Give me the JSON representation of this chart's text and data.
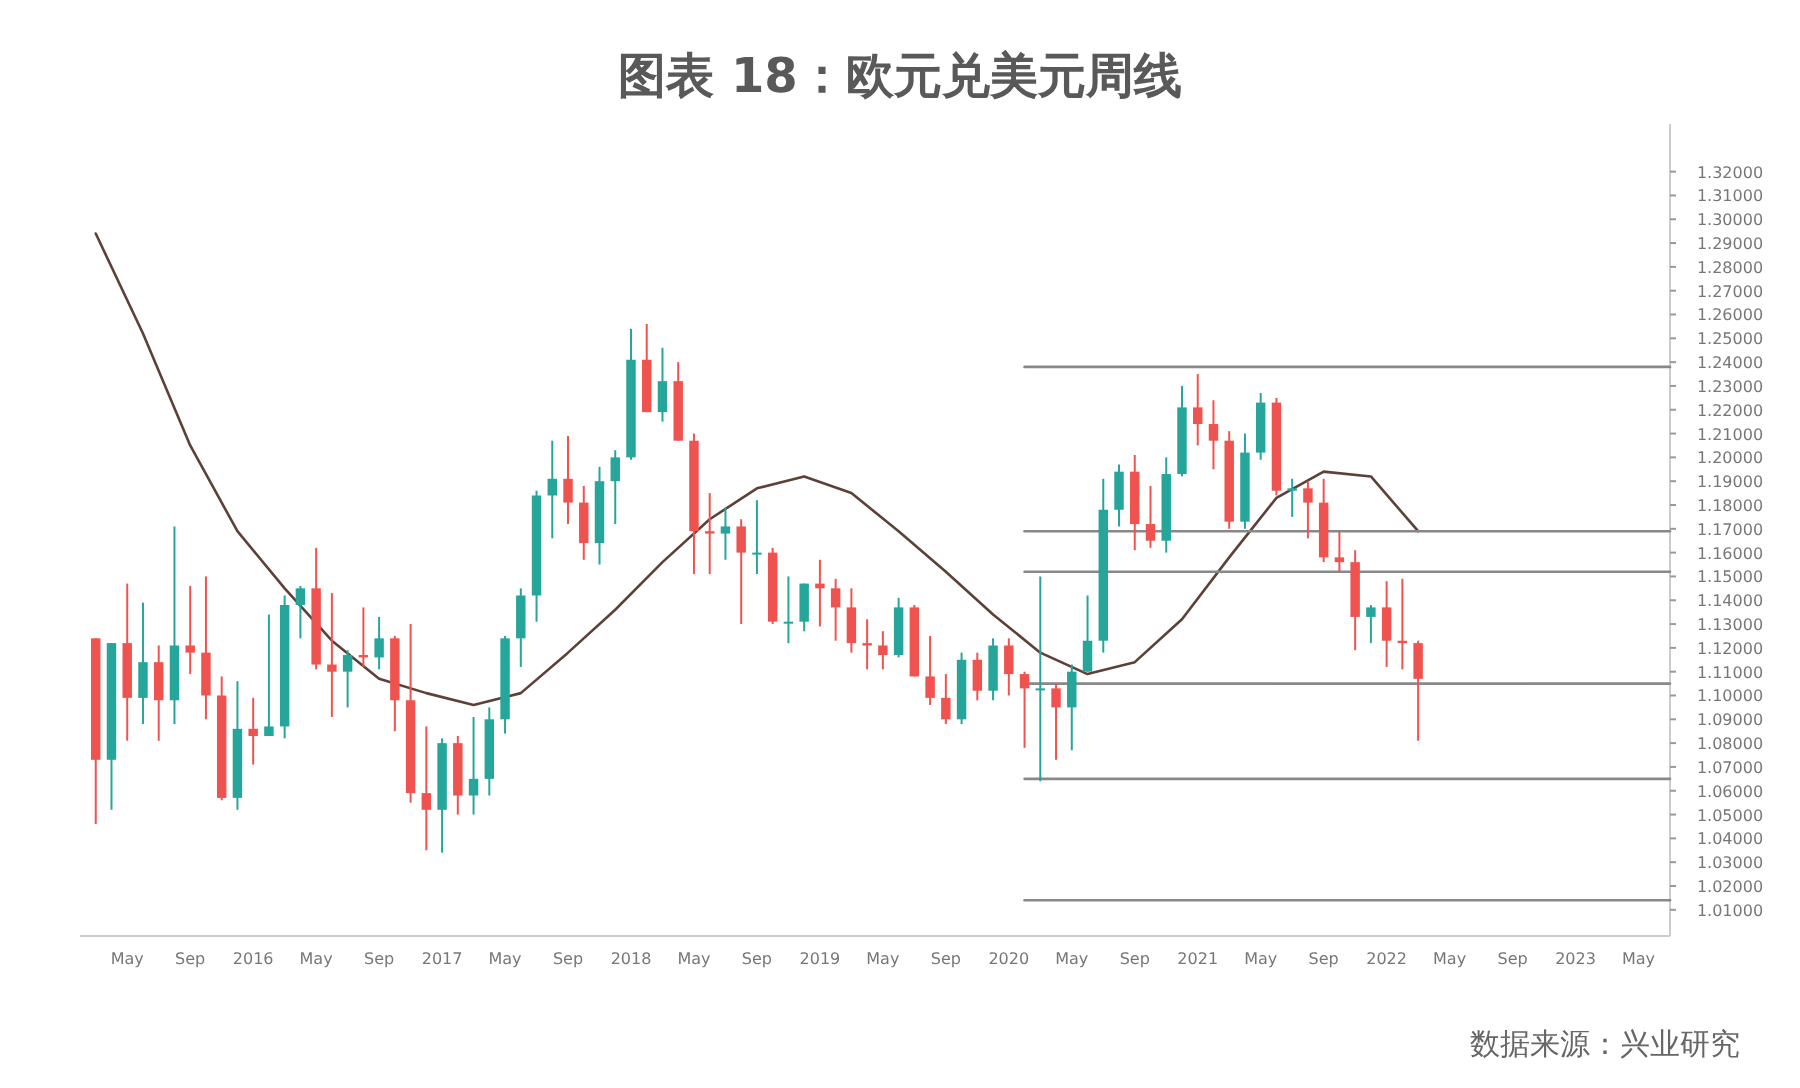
{
  "chart_data": {
    "type": "candlestick",
    "title": "图表 18：欧元兑美元周线",
    "annotations": [
      "数据来源：兴业研究"
    ],
    "xlim": [
      "2015-02",
      "2023-07"
    ],
    "ylim": [
      0.999,
      1.34
    ],
    "yticks": [
      {
        "value": 1.01,
        "label": "1.01000"
      },
      {
        "value": 1.02,
        "label": "1.02000"
      },
      {
        "value": 1.03,
        "label": "1.03000"
      },
      {
        "value": 1.04,
        "label": "1.04000"
      },
      {
        "value": 1.05,
        "label": "1.05000"
      },
      {
        "value": 1.06,
        "label": "1.06000"
      },
      {
        "value": 1.07,
        "label": "1.07000"
      },
      {
        "value": 1.08,
        "label": "1.08000"
      },
      {
        "value": 1.09,
        "label": "1.09000"
      },
      {
        "value": 1.1,
        "label": "1.10000"
      },
      {
        "value": 1.11,
        "label": "1.11000"
      },
      {
        "value": 1.12,
        "label": "1.12000"
      },
      {
        "value": 1.13,
        "label": "1.13000"
      },
      {
        "value": 1.14,
        "label": "1.14000"
      },
      {
        "value": 1.15,
        "label": "1.15000"
      },
      {
        "value": 1.16,
        "label": "1.16000"
      },
      {
        "value": 1.17,
        "label": "1.17000"
      },
      {
        "value": 1.18,
        "label": "1.18000"
      },
      {
        "value": 1.19,
        "label": "1.19000"
      },
      {
        "value": 1.2,
        "label": "1.20000"
      },
      {
        "value": 1.21,
        "label": "1.21000"
      },
      {
        "value": 1.22,
        "label": "1.22000"
      },
      {
        "value": 1.23,
        "label": "1.23000"
      },
      {
        "value": 1.24,
        "label": "1.24000"
      },
      {
        "value": 1.25,
        "label": "1.25000"
      },
      {
        "value": 1.26,
        "label": "1.26000"
      },
      {
        "value": 1.27,
        "label": "1.27000"
      },
      {
        "value": 1.28,
        "label": "1.28000"
      },
      {
        "value": 1.29,
        "label": "1.29000"
      },
      {
        "value": 1.3,
        "label": "1.30000"
      },
      {
        "value": 1.31,
        "label": "1.31000"
      },
      {
        "value": 1.32,
        "label": "1.32000"
      }
    ],
    "xticks": [
      {
        "value": "2015-05",
        "label": "May"
      },
      {
        "value": "2015-09",
        "label": "Sep"
      },
      {
        "value": "2016-01",
        "label": "2016"
      },
      {
        "value": "2016-05",
        "label": "May"
      },
      {
        "value": "2016-09",
        "label": "Sep"
      },
      {
        "value": "2017-01",
        "label": "2017"
      },
      {
        "value": "2017-05",
        "label": "May"
      },
      {
        "value": "2017-09",
        "label": "Sep"
      },
      {
        "value": "2018-01",
        "label": "2018"
      },
      {
        "value": "2018-05",
        "label": "May"
      },
      {
        "value": "2018-09",
        "label": "Sep"
      },
      {
        "value": "2019-01",
        "label": "2019"
      },
      {
        "value": "2019-05",
        "label": "May"
      },
      {
        "value": "2019-09",
        "label": "Sep"
      },
      {
        "value": "2020-01",
        "label": "2020"
      },
      {
        "value": "2020-05",
        "label": "May"
      },
      {
        "value": "2020-09",
        "label": "Sep"
      },
      {
        "value": "2021-01",
        "label": "2021"
      },
      {
        "value": "2021-05",
        "label": "May"
      },
      {
        "value": "2021-09",
        "label": "Sep"
      },
      {
        "value": "2022-01",
        "label": "2022"
      },
      {
        "value": "2022-05",
        "label": "May"
      },
      {
        "value": "2022-09",
        "label": "Sep"
      },
      {
        "value": "2023-01",
        "label": "2023"
      },
      {
        "value": "2023-05",
        "label": "May"
      }
    ],
    "x": [
      "2015-03",
      "2015-04",
      "2015-05",
      "2015-06",
      "2015-07",
      "2015-08",
      "2015-09",
      "2015-10",
      "2015-11",
      "2015-12",
      "2016-01",
      "2016-02",
      "2016-03",
      "2016-04",
      "2016-05",
      "2016-06",
      "2016-07",
      "2016-08",
      "2016-09",
      "2016-10",
      "2016-11",
      "2016-12",
      "2017-01",
      "2017-02",
      "2017-03",
      "2017-04",
      "2017-05",
      "2017-06",
      "2017-07",
      "2017-08",
      "2017-09",
      "2017-10",
      "2017-11",
      "2017-12",
      "2018-01",
      "2018-02",
      "2018-03",
      "2018-04",
      "2018-05",
      "2018-06",
      "2018-07",
      "2018-08",
      "2018-09",
      "2018-10",
      "2018-11",
      "2018-12",
      "2019-01",
      "2019-02",
      "2019-03",
      "2019-04",
      "2019-05",
      "2019-06",
      "2019-07",
      "2019-08",
      "2019-09",
      "2019-10",
      "2019-11",
      "2019-12",
      "2020-01",
      "2020-02",
      "2020-03",
      "2020-04",
      "2020-05",
      "2020-06",
      "2020-07",
      "2020-08",
      "2020-09",
      "2020-10",
      "2020-11",
      "2020-12",
      "2021-01",
      "2021-02",
      "2021-03",
      "2021-04",
      "2021-05",
      "2021-06",
      "2021-07",
      "2021-08",
      "2021-09",
      "2021-10",
      "2021-11",
      "2021-12",
      "2022-01",
      "2022-02",
      "2022-03"
    ],
    "ohlc": [
      [
        1.124,
        1.124,
        1.046,
        1.073
      ],
      [
        1.073,
        1.122,
        1.052,
        1.122
      ],
      [
        1.122,
        1.147,
        1.081,
        1.099
      ],
      [
        1.099,
        1.139,
        1.088,
        1.114
      ],
      [
        1.114,
        1.121,
        1.081,
        1.098
      ],
      [
        1.098,
        1.171,
        1.088,
        1.121
      ],
      [
        1.121,
        1.146,
        1.109,
        1.118
      ],
      [
        1.118,
        1.15,
        1.09,
        1.1
      ],
      [
        1.1,
        1.108,
        1.056,
        1.057
      ],
      [
        1.057,
        1.106,
        1.052,
        1.086
      ],
      [
        1.086,
        1.099,
        1.071,
        1.083
      ],
      [
        1.083,
        1.134,
        1.083,
        1.087
      ],
      [
        1.087,
        1.142,
        1.082,
        1.138
      ],
      [
        1.138,
        1.146,
        1.124,
        1.145
      ],
      [
        1.145,
        1.162,
        1.111,
        1.113
      ],
      [
        1.113,
        1.143,
        1.091,
        1.11
      ],
      [
        1.11,
        1.119,
        1.095,
        1.117
      ],
      [
        1.117,
        1.137,
        1.112,
        1.116
      ],
      [
        1.116,
        1.133,
        1.111,
        1.124
      ],
      [
        1.124,
        1.125,
        1.085,
        1.098
      ],
      [
        1.098,
        1.13,
        1.055,
        1.059
      ],
      [
        1.059,
        1.087,
        1.035,
        1.052
      ],
      [
        1.052,
        1.082,
        1.034,
        1.08
      ],
      [
        1.08,
        1.083,
        1.05,
        1.058
      ],
      [
        1.058,
        1.091,
        1.05,
        1.065
      ],
      [
        1.065,
        1.095,
        1.058,
        1.09
      ],
      [
        1.09,
        1.125,
        1.084,
        1.124
      ],
      [
        1.124,
        1.145,
        1.112,
        1.142
      ],
      [
        1.142,
        1.186,
        1.131,
        1.184
      ],
      [
        1.184,
        1.207,
        1.166,
        1.191
      ],
      [
        1.191,
        1.209,
        1.172,
        1.181
      ],
      [
        1.181,
        1.188,
        1.157,
        1.164
      ],
      [
        1.164,
        1.196,
        1.155,
        1.19
      ],
      [
        1.19,
        1.203,
        1.172,
        1.2
      ],
      [
        1.2,
        1.254,
        1.199,
        1.241
      ],
      [
        1.241,
        1.256,
        1.219,
        1.219
      ],
      [
        1.219,
        1.246,
        1.215,
        1.232
      ],
      [
        1.232,
        1.24,
        1.207,
        1.207
      ],
      [
        1.207,
        1.21,
        1.151,
        1.169
      ],
      [
        1.169,
        1.185,
        1.151,
        1.168
      ],
      [
        1.168,
        1.179,
        1.157,
        1.171
      ],
      [
        1.171,
        1.174,
        1.13,
        1.16
      ],
      [
        1.16,
        1.182,
        1.151,
        1.16
      ],
      [
        1.16,
        1.162,
        1.13,
        1.131
      ],
      [
        1.131,
        1.15,
        1.122,
        1.131
      ],
      [
        1.131,
        1.147,
        1.127,
        1.147
      ],
      [
        1.147,
        1.157,
        1.129,
        1.145
      ],
      [
        1.145,
        1.149,
        1.123,
        1.137
      ],
      [
        1.137,
        1.145,
        1.118,
        1.122
      ],
      [
        1.122,
        1.132,
        1.111,
        1.121
      ],
      [
        1.121,
        1.127,
        1.111,
        1.117
      ],
      [
        1.117,
        1.141,
        1.116,
        1.137
      ],
      [
        1.137,
        1.138,
        1.108,
        1.108
      ],
      [
        1.108,
        1.125,
        1.096,
        1.099
      ],
      [
        1.099,
        1.109,
        1.088,
        1.09
      ],
      [
        1.09,
        1.118,
        1.088,
        1.115
      ],
      [
        1.115,
        1.118,
        1.098,
        1.102
      ],
      [
        1.102,
        1.124,
        1.098,
        1.121
      ],
      [
        1.121,
        1.124,
        1.1,
        1.109
      ],
      [
        1.109,
        1.11,
        1.078,
        1.103
      ],
      [
        1.103,
        1.15,
        1.064,
        1.103
      ],
      [
        1.103,
        1.105,
        1.073,
        1.095
      ],
      [
        1.095,
        1.113,
        1.077,
        1.11
      ],
      [
        1.11,
        1.142,
        1.11,
        1.123
      ],
      [
        1.123,
        1.191,
        1.118,
        1.178
      ],
      [
        1.178,
        1.197,
        1.171,
        1.194
      ],
      [
        1.194,
        1.201,
        1.161,
        1.172
      ],
      [
        1.172,
        1.188,
        1.162,
        1.165
      ],
      [
        1.165,
        1.2,
        1.16,
        1.193
      ],
      [
        1.193,
        1.23,
        1.192,
        1.221
      ],
      [
        1.221,
        1.235,
        1.205,
        1.214
      ],
      [
        1.214,
        1.224,
        1.195,
        1.207
      ],
      [
        1.207,
        1.211,
        1.17,
        1.173
      ],
      [
        1.173,
        1.21,
        1.17,
        1.202
      ],
      [
        1.202,
        1.227,
        1.199,
        1.223
      ],
      [
        1.223,
        1.225,
        1.184,
        1.186
      ],
      [
        1.186,
        1.191,
        1.175,
        1.187
      ],
      [
        1.187,
        1.19,
        1.166,
        1.181
      ],
      [
        1.181,
        1.191,
        1.156,
        1.158
      ],
      [
        1.158,
        1.169,
        1.152,
        1.156
      ],
      [
        1.156,
        1.161,
        1.119,
        1.133
      ],
      [
        1.133,
        1.138,
        1.122,
        1.137
      ],
      [
        1.137,
        1.148,
        1.112,
        1.123
      ],
      [
        1.123,
        1.149,
        1.111,
        1.122
      ],
      [
        1.122,
        1.123,
        1.081,
        1.107
      ]
    ],
    "series": [
      {
        "type": "line",
        "color": "#5d4037",
        "x": [
          "2015-03",
          "2015-06",
          "2015-09",
          "2015-12",
          "2016-03",
          "2016-06",
          "2016-09",
          "2016-12",
          "2017-03",
          "2017-06",
          "2017-09",
          "2017-12",
          "2018-03",
          "2018-06",
          "2018-09",
          "2018-12",
          "2019-03",
          "2019-06",
          "2019-09",
          "2019-12",
          "2020-03",
          "2020-06",
          "2020-09",
          "2020-12",
          "2021-03",
          "2021-06",
          "2021-09",
          "2021-12",
          "2022-03"
        ],
        "values": [
          1.294,
          1.252,
          1.205,
          1.169,
          1.145,
          1.123,
          1.107,
          1.101,
          1.096,
          1.101,
          1.118,
          1.136,
          1.156,
          1.174,
          1.187,
          1.192,
          1.185,
          1.169,
          1.152,
          1.134,
          1.118,
          1.109,
          1.114,
          1.132,
          1.158,
          1.183,
          1.194,
          1.192,
          1.169
        ]
      },
      {
        "type": "line",
        "color": "#888888",
        "x": [
          "2020-02",
          "2023-07"
        ],
        "values": [
          1.238,
          1.238
        ]
      },
      {
        "type": "line",
        "color": "#888888",
        "x": [
          "2020-02",
          "2023-07"
        ],
        "values": [
          1.169,
          1.169
        ]
      },
      {
        "type": "line",
        "color": "#888888",
        "x": [
          "2020-02",
          "2023-07"
        ],
        "values": [
          1.152,
          1.152
        ]
      },
      {
        "type": "line",
        "color": "#888888",
        "x": [
          "2020-02",
          "2023-07"
        ],
        "values": [
          1.105,
          1.105
        ]
      },
      {
        "type": "line",
        "color": "#888888",
        "x": [
          "2020-02",
          "2023-07"
        ],
        "values": [
          1.065,
          1.065
        ]
      },
      {
        "type": "line",
        "color": "#888888",
        "x": [
          "2020-02",
          "2023-07"
        ],
        "values": [
          1.014,
          1.014
        ]
      }
    ]
  }
}
